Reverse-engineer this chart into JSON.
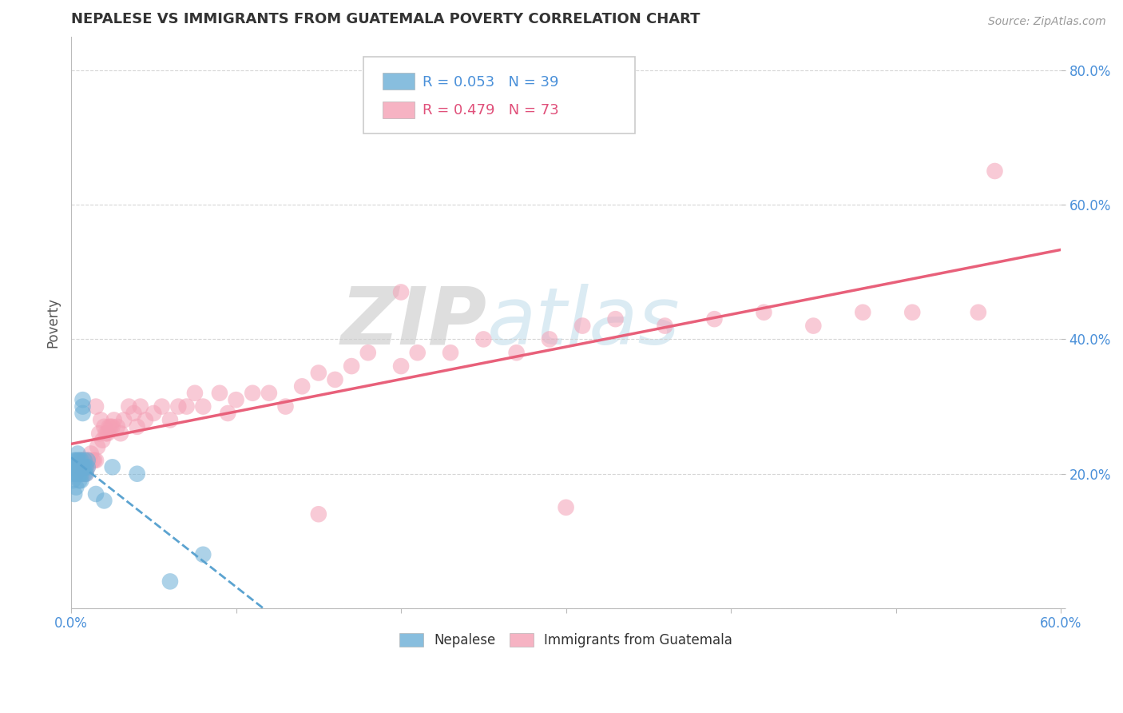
{
  "title": "NEPALESE VS IMMIGRANTS FROM GUATEMALA POVERTY CORRELATION CHART",
  "source": "Source: ZipAtlas.com",
  "ylabel": "Poverty",
  "watermark_zip": "ZIP",
  "watermark_atlas": "atlas",
  "xlim": [
    0.0,
    0.6
  ],
  "ylim": [
    0.0,
    0.85
  ],
  "nepalese_R": 0.053,
  "nepalese_N": 39,
  "guatemala_R": 0.479,
  "guatemala_N": 73,
  "nepalese_color": "#6baed6",
  "guatemala_color": "#f4a0b5",
  "nepalese_line_color": "#5ba3d0",
  "guatemala_line_color": "#e8607a",
  "background_color": "#ffffff",
  "grid_color": "#cccccc",
  "nepalese_x": [
    0.001,
    0.001,
    0.001,
    0.002,
    0.002,
    0.002,
    0.003,
    0.003,
    0.003,
    0.003,
    0.004,
    0.004,
    0.004,
    0.005,
    0.005,
    0.005,
    0.005,
    0.006,
    0.006,
    0.006,
    0.006,
    0.006,
    0.007,
    0.007,
    0.007,
    0.007,
    0.008,
    0.008,
    0.008,
    0.009,
    0.009,
    0.01,
    0.01,
    0.015,
    0.02,
    0.025,
    0.04,
    0.06,
    0.08
  ],
  "nepalese_y": [
    0.2,
    0.21,
    0.19,
    0.21,
    0.22,
    0.17,
    0.21,
    0.22,
    0.2,
    0.18,
    0.22,
    0.23,
    0.2,
    0.21,
    0.2,
    0.22,
    0.19,
    0.21,
    0.22,
    0.2,
    0.21,
    0.19,
    0.3,
    0.31,
    0.29,
    0.21,
    0.21,
    0.22,
    0.2,
    0.21,
    0.2,
    0.21,
    0.22,
    0.17,
    0.16,
    0.21,
    0.2,
    0.04,
    0.08
  ],
  "guatemala_x": [
    0.003,
    0.005,
    0.006,
    0.007,
    0.007,
    0.008,
    0.008,
    0.009,
    0.009,
    0.01,
    0.01,
    0.011,
    0.012,
    0.013,
    0.014,
    0.015,
    0.015,
    0.016,
    0.017,
    0.018,
    0.019,
    0.02,
    0.021,
    0.022,
    0.023,
    0.024,
    0.025,
    0.026,
    0.028,
    0.03,
    0.032,
    0.035,
    0.038,
    0.04,
    0.042,
    0.045,
    0.05,
    0.055,
    0.06,
    0.065,
    0.07,
    0.075,
    0.08,
    0.09,
    0.095,
    0.1,
    0.11,
    0.12,
    0.13,
    0.14,
    0.15,
    0.16,
    0.17,
    0.18,
    0.2,
    0.21,
    0.23,
    0.25,
    0.27,
    0.29,
    0.31,
    0.33,
    0.36,
    0.39,
    0.42,
    0.45,
    0.48,
    0.51,
    0.55,
    0.56,
    0.2,
    0.15,
    0.3
  ],
  "guatemala_y": [
    0.2,
    0.21,
    0.22,
    0.2,
    0.22,
    0.21,
    0.22,
    0.2,
    0.21,
    0.22,
    0.21,
    0.22,
    0.23,
    0.22,
    0.22,
    0.3,
    0.22,
    0.24,
    0.26,
    0.28,
    0.25,
    0.27,
    0.26,
    0.26,
    0.27,
    0.27,
    0.27,
    0.28,
    0.27,
    0.26,
    0.28,
    0.3,
    0.29,
    0.27,
    0.3,
    0.28,
    0.29,
    0.3,
    0.28,
    0.3,
    0.3,
    0.32,
    0.3,
    0.32,
    0.29,
    0.31,
    0.32,
    0.32,
    0.3,
    0.33,
    0.35,
    0.34,
    0.36,
    0.38,
    0.36,
    0.38,
    0.38,
    0.4,
    0.38,
    0.4,
    0.42,
    0.43,
    0.42,
    0.43,
    0.44,
    0.42,
    0.44,
    0.44,
    0.44,
    0.65,
    0.47,
    0.14,
    0.15
  ]
}
